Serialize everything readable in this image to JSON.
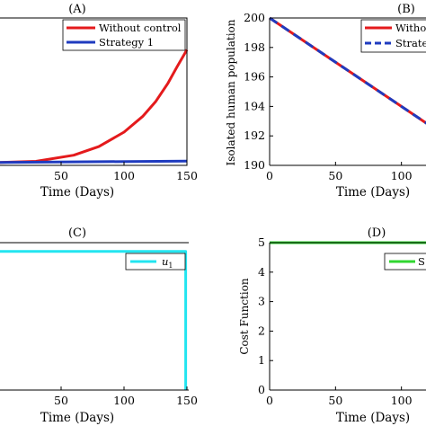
{
  "chart_data": [
    {
      "panel": "(A)",
      "type": "line",
      "xlabel": "Time (Days)",
      "ylabel": "",
      "xlim": [
        0,
        150
      ],
      "xticks": [
        50,
        100,
        150
      ],
      "series": [
        {
          "name": "Without control",
          "color": "#e41a1c",
          "style": "solid",
          "x": [
            0,
            30,
            60,
            80,
            100,
            115,
            125,
            135,
            142,
            150
          ],
          "y": [
            0,
            0.4,
            2.5,
            5.5,
            10.5,
            16,
            21,
            27.5,
            33,
            39
          ]
        },
        {
          "name": "Strategy 1",
          "color": "#1f3bbf",
          "style": "solid",
          "x": [
            0,
            150
          ],
          "y": [
            0,
            0.5
          ]
        }
      ],
      "ylim": [
        -1,
        50
      ],
      "legend": "top-right"
    },
    {
      "panel": "(B)",
      "type": "line",
      "xlabel": "Time (Days)",
      "ylabel": "Isolated human population",
      "xlim": [
        0,
        120
      ],
      "ylim": [
        190,
        200
      ],
      "xticks": [
        0,
        50,
        100
      ],
      "yticks": [
        190,
        192,
        194,
        196,
        198,
        200
      ],
      "series": [
        {
          "name": "Witho",
          "color": "#e41a1c",
          "style": "solid",
          "x": [
            0,
            120
          ],
          "y": [
            200,
            192.8
          ]
        },
        {
          "name": "Strateg",
          "color": "#1f3bbf",
          "style": "dashed",
          "x": [
            0,
            120
          ],
          "y": [
            200,
            192.8
          ]
        }
      ],
      "legend": "top-right"
    },
    {
      "panel": "(C)",
      "type": "line",
      "xlabel": "Time (Days)",
      "ylabel": "",
      "xlim": [
        0,
        150
      ],
      "ylim": [
        0,
        1.05
      ],
      "xticks": [
        50,
        100,
        150
      ],
      "series": [
        {
          "name": "u",
          "subscript": "1",
          "color": "#22e5f0",
          "style": "solid",
          "x": [
            0,
            149,
            149
          ],
          "y": [
            1,
            1,
            0
          ]
        }
      ],
      "legend": "top-right"
    },
    {
      "panel": "(D)",
      "type": "line",
      "xlabel": "Time (Days)",
      "ylabel": "Cost Function",
      "xlim": [
        0,
        120
      ],
      "ylim": [
        0,
        5
      ],
      "xticks": [
        0,
        50,
        100
      ],
      "yticks": [
        0,
        1,
        2,
        3,
        4,
        5
      ],
      "series": [
        {
          "name": "S",
          "color": "#2fd62f",
          "style": "solid",
          "x": [
            0,
            120
          ],
          "y": [
            5,
            5
          ]
        }
      ],
      "legend": "top-right"
    }
  ]
}
